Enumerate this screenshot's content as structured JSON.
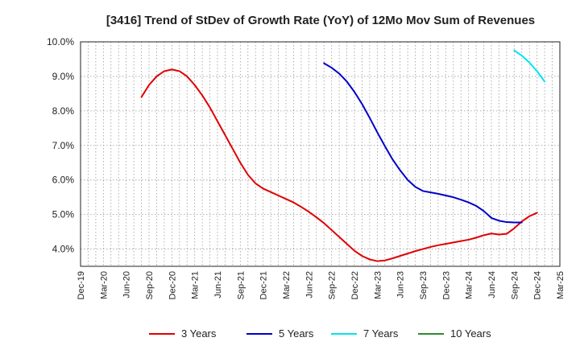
{
  "chart_data": {
    "type": "line",
    "title": "[3416]  Trend of StDev of Growth Rate (YoY) of 12Mo Mov Sum of Revenues",
    "xlabel": "",
    "ylabel": "",
    "ylim": [
      3.5,
      10.0
    ],
    "yticks": [
      4.0,
      5.0,
      6.0,
      7.0,
      8.0,
      9.0,
      10.0
    ],
    "ytick_labels": [
      "4.0%",
      "5.0%",
      "6.0%",
      "7.0%",
      "8.0%",
      "9.0%",
      "10.0%"
    ],
    "xtick_labels": [
      "Dec-19",
      "Mar-20",
      "Jun-20",
      "Sep-20",
      "Dec-20",
      "Mar-21",
      "Jun-21",
      "Sep-21",
      "Dec-21",
      "Mar-22",
      "Jun-22",
      "Sep-22",
      "Dec-22",
      "Mar-23",
      "Jun-23",
      "Sep-23",
      "Dec-23",
      "Mar-24",
      "Jun-24",
      "Sep-24",
      "Dec-24",
      "Mar-25"
    ],
    "grid": true,
    "legend_position": "bottom",
    "series": [
      {
        "name": "3 Years",
        "color": "#e00000",
        "start_index": 8,
        "values": [
          8.4,
          8.75,
          9.0,
          9.15,
          9.2,
          9.15,
          9.0,
          8.75,
          8.45,
          8.1,
          7.7,
          7.3,
          6.9,
          6.5,
          6.15,
          5.9,
          5.75,
          5.65,
          5.55,
          5.45,
          5.35,
          5.22,
          5.08,
          4.92,
          4.75,
          4.55,
          4.35,
          4.15,
          3.95,
          3.8,
          3.7,
          3.65,
          3.67,
          3.73,
          3.8,
          3.87,
          3.94,
          4.0,
          4.06,
          4.11,
          4.15,
          4.19,
          4.23,
          4.27,
          4.33,
          4.4,
          4.45,
          4.42,
          4.44,
          4.6,
          4.8,
          4.95,
          5.05
        ]
      },
      {
        "name": "5 Years",
        "color": "#0000c8",
        "start_index": 32,
        "values": [
          9.38,
          9.25,
          9.08,
          8.85,
          8.55,
          8.2,
          7.8,
          7.38,
          6.98,
          6.6,
          6.28,
          6.0,
          5.8,
          5.68,
          5.64,
          5.6,
          5.55,
          5.5,
          5.43,
          5.35,
          5.25,
          5.1,
          4.9,
          4.82,
          4.78,
          4.77,
          4.77
        ]
      },
      {
        "name": "7 Years",
        "color": "#00e5ee",
        "start_index": 57,
        "values": [
          9.75,
          9.6,
          9.4,
          9.15,
          8.85
        ]
      },
      {
        "name": "10 Years",
        "color": "#2e8b2e",
        "start_index": 0,
        "values": []
      }
    ]
  }
}
